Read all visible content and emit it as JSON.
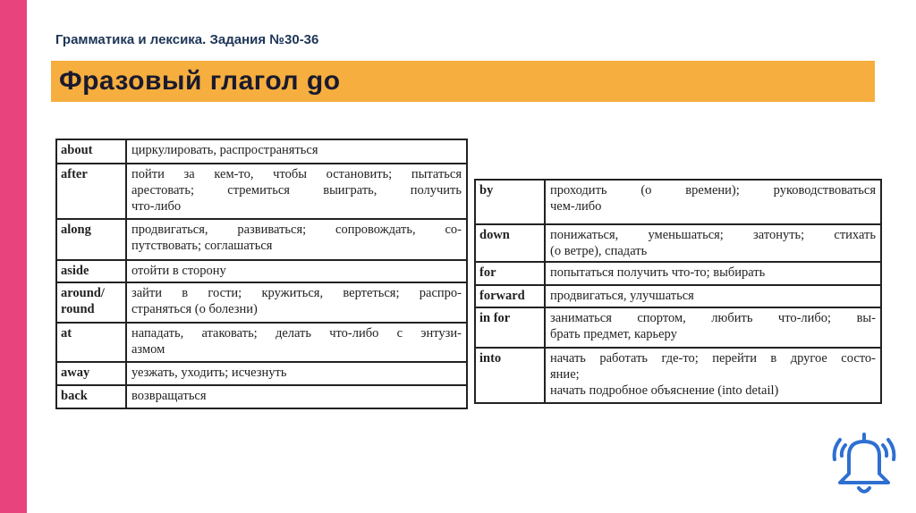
{
  "header": {
    "subtitle": "Грамматика и лексика. Задания №30-36",
    "title": "Фразовый глагол go"
  },
  "colors": {
    "accent_pink": "#e8437c",
    "title_bar": "#f6ae3e",
    "icon": "#2f6fd1"
  },
  "icon": "bell-icon",
  "left_table": [
    {
      "key": "about",
      "lines": [
        "циркулировать, распространяться"
      ]
    },
    {
      "key": "after",
      "lines": [
        "пойти за кем-то, чтобы остановить; пытаться",
        "арестовать; стремиться выиграть, получить",
        "что-либо"
      ]
    },
    {
      "key": "along",
      "lines": [
        "продвигаться, развиваться; сопровождать, со-",
        "путствовать; соглашаться"
      ]
    },
    {
      "key": "aside",
      "lines": [
        "отойти в сторону"
      ]
    },
    {
      "key": "around/ round",
      "lines": [
        "зайти в гости; кружиться, вертеться; распро-",
        "страняться (о болезни)"
      ]
    },
    {
      "key": "at",
      "lines": [
        "нападать, атаковать; делать что-либо с энтузи-",
        "азмом"
      ]
    },
    {
      "key": "away",
      "lines": [
        "уезжать, уходить; исчезнуть"
      ]
    },
    {
      "key": "back",
      "lines": [
        "возвращаться"
      ]
    }
  ],
  "right_table": [
    {
      "key": "by",
      "lines": [
        "проходить (о времени); руководствоваться",
        "чем-либо"
      ]
    },
    {
      "key": "down",
      "lines": [
        "понижаться, уменьшаться; затонуть; стихать",
        "(о ветре), спадать"
      ]
    },
    {
      "key": "for",
      "lines": [
        "попытаться получить что-то; выбирать"
      ]
    },
    {
      "key": "forward",
      "lines": [
        "продвигаться, улучшаться"
      ]
    },
    {
      "key": "in for",
      "lines": [
        "заниматься спортом, любить что-либо; вы-",
        "брать предмет, карьеру"
      ]
    },
    {
      "key": "into",
      "lines": [
        "начать работать где-то; перейти в другое состо-",
        "яние;",
        "начать подробное объяснение (into detail)"
      ]
    }
  ]
}
